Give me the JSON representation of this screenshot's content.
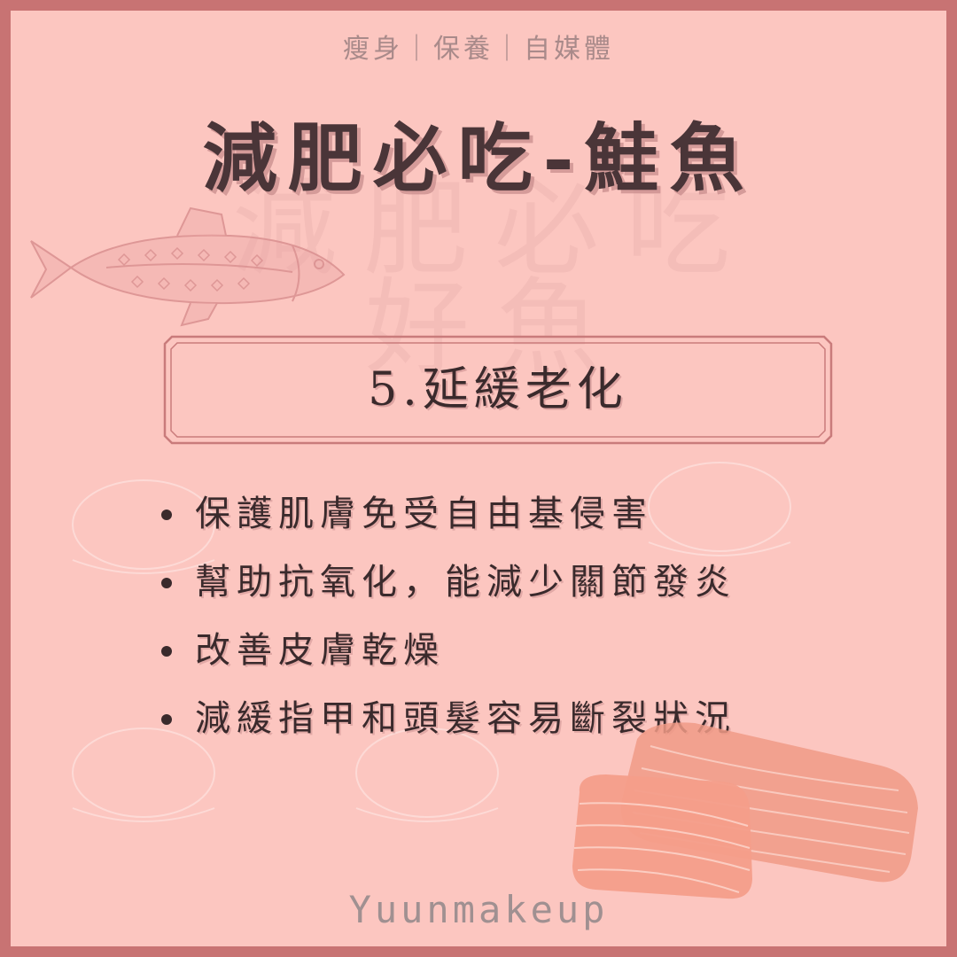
{
  "header": {
    "tagline": "瘦身｜保養｜自媒體",
    "title": "減肥必吃-鮭魚",
    "watermark_line1": "減肥必吃",
    "watermark_line2": "好魚"
  },
  "section": {
    "title": "5.延緩老化"
  },
  "bullets": [
    "保護肌膚免受自由基侵害",
    "幫助抗氧化，能減少關節發炎",
    "改善皮膚乾燥",
    "減緩指甲和頭髮容易斷裂狀況"
  ],
  "footer": {
    "brand": "Yuunmakeup"
  },
  "colors": {
    "frame": "#c87373",
    "background": "#fcc6c0",
    "text": "#3a2a2c",
    "salmon": "#f09a86"
  },
  "icons": [
    "salmon-fish-illustration",
    "salmon-fillet-illustration"
  ]
}
